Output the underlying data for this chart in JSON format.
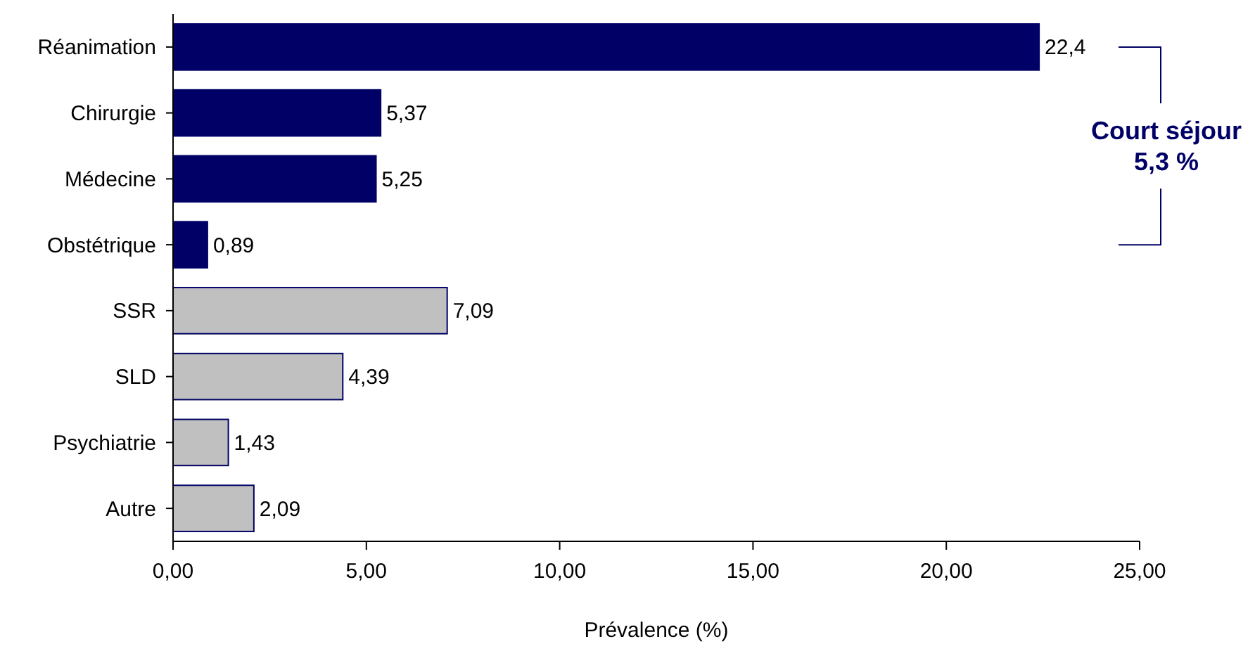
{
  "chart_data": {
    "type": "bar",
    "orientation": "horizontal",
    "xlabel": "Prévalence (%)",
    "categories": [
      "Réanimation",
      "Chirurgie",
      "Médecine",
      "Obstétrique",
      "SSR",
      "SLD",
      "Psychiatrie",
      "Autre"
    ],
    "values": [
      22.4,
      5.37,
      5.25,
      0.89,
      7.09,
      4.39,
      1.43,
      2.09
    ],
    "value_labels": [
      "22,4",
      "5,37",
      "5,25",
      "0,89",
      "7,09",
      "4,39",
      "1,43",
      "2,09"
    ],
    "colors": [
      "#000066",
      "#000066",
      "#000066",
      "#000066",
      "#c0c0c0",
      "#c0c0c0",
      "#c0c0c0",
      "#c0c0c0"
    ],
    "xlim": [
      0,
      25
    ],
    "xticks": [
      {
        "value": 0,
        "label": "0,00"
      },
      {
        "value": 5,
        "label": "5,00"
      },
      {
        "value": 10,
        "label": "10,00"
      },
      {
        "value": 15,
        "label": "15,00"
      },
      {
        "value": 20,
        "label": "20,00"
      },
      {
        "value": 25,
        "label": "25,00"
      }
    ],
    "grid": false,
    "annotations": [
      "Court séjour\n5,3 %"
    ]
  }
}
